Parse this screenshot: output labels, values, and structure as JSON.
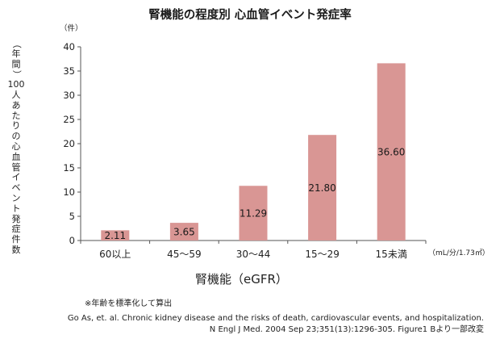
{
  "chart_data": {
    "type": "bar",
    "title": "腎機能の程度別 心血管イベント発症率",
    "y_unit": "（件）",
    "ylabel": "（年間）100人あたりの心血管イベント発症件数",
    "ylabel_lines": [
      "（",
      "年",
      "間",
      "）",
      "100",
      "人",
      "あ",
      "た",
      "り",
      "の",
      "心",
      "血",
      "管",
      "イ",
      "ベ",
      "ン",
      "ト",
      "発",
      "症",
      "件",
      "数"
    ],
    "xlabel": "腎機能（eGFR）",
    "x_unit": "（mL/分/1.73㎡）",
    "categories": [
      "60以上",
      "45～59",
      "30～44",
      "15～29",
      "15未満"
    ],
    "values": [
      2.11,
      3.65,
      11.29,
      21.8,
      36.6
    ],
    "value_labels": [
      "2.11",
      "3.65",
      "11.29",
      "21.80",
      "36.60"
    ],
    "yticks": [
      "0",
      "5",
      "10",
      "15",
      "20",
      "25",
      "30",
      "35",
      "40"
    ],
    "ylim": [
      0,
      40
    ],
    "bar_color": "#d99694",
    "grid": false,
    "legend": "none"
  },
  "notes": {
    "footnote": "※年齢を標準化して算出",
    "source_lines": [
      "Go As, et. al. Chronic kidney disease and the risks of death, cardiovascular events, and hospitalization.",
      "N Engl J Med. 2004 Sep 23;351(13):1296-305. Figure1 Bより一部改変"
    ]
  }
}
